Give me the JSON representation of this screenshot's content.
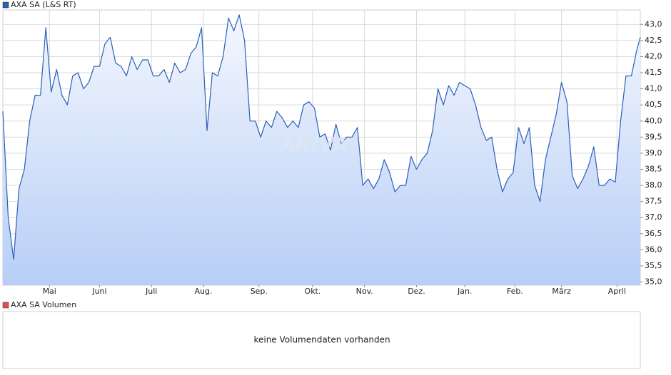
{
  "chart_data": {
    "type": "line",
    "title": "AXA SA (L&S RT)",
    "watermark": "ARIVA",
    "volume_title": "AXA SA Volumen",
    "volume_note": "keine Volumendaten vorhanden",
    "grid": true,
    "xlim": [
      0,
      356
    ],
    "ylim": [
      34.9,
      43.45
    ],
    "xticks": [
      {
        "value": 26,
        "label": "Mai"
      },
      {
        "value": 54,
        "label": "Juni"
      },
      {
        "value": 83,
        "label": "Juli"
      },
      {
        "value": 112,
        "label": "Aug."
      },
      {
        "value": 143,
        "label": "Sep."
      },
      {
        "value": 173,
        "label": "Okt."
      },
      {
        "value": 202,
        "label": "Nov."
      },
      {
        "value": 231,
        "label": "Dez."
      },
      {
        "value": 258,
        "label": "Jan."
      },
      {
        "value": 286,
        "label": "Feb."
      },
      {
        "value": 312,
        "label": "März"
      },
      {
        "value": 343,
        "label": "April"
      }
    ],
    "yticks": [
      {
        "value": 35,
        "label": "35,0"
      },
      {
        "value": 35.5,
        "label": "35,5"
      },
      {
        "value": 36,
        "label": "36,0"
      },
      {
        "value": 36.5,
        "label": "36,5"
      },
      {
        "value": 37,
        "label": "37,0"
      },
      {
        "value": 37.5,
        "label": "37,5"
      },
      {
        "value": 38,
        "label": "38,0"
      },
      {
        "value": 38.5,
        "label": "38,5"
      },
      {
        "value": 39,
        "label": "39,0"
      },
      {
        "value": 39.5,
        "label": "39,5"
      },
      {
        "value": 40,
        "label": "40,0"
      },
      {
        "value": 40.5,
        "label": "40,5"
      },
      {
        "value": 41,
        "label": "41,0"
      },
      {
        "value": 41.5,
        "label": "41,5"
      },
      {
        "value": 42,
        "label": "42,0"
      },
      {
        "value": 42.5,
        "label": "42,5"
      },
      {
        "value": 43,
        "label": "43,0"
      }
    ],
    "series": [
      {
        "name": "AXA SA (L&S RT)",
        "color": "#2a5fb8",
        "legend_color": "#2a5fb8",
        "x": [
          0,
          3,
          6,
          9,
          12,
          15,
          18,
          21,
          24,
          27,
          30,
          33,
          36,
          39,
          42,
          45,
          48,
          51,
          54,
          57,
          60,
          63,
          66,
          69,
          72,
          75,
          78,
          81,
          84,
          87,
          90,
          93,
          96,
          99,
          102,
          105,
          108,
          111,
          114,
          117,
          120,
          123,
          126,
          129,
          132,
          135,
          138,
          141,
          144,
          147,
          150,
          153,
          156,
          159,
          162,
          165,
          168,
          171,
          174,
          177,
          180,
          183,
          186,
          189,
          192,
          195,
          198,
          201,
          204,
          207,
          210,
          213,
          216,
          219,
          222,
          225,
          228,
          231,
          234,
          237,
          240,
          243,
          246,
          249,
          252,
          255,
          258,
          261,
          264,
          267,
          270,
          273,
          276,
          279,
          282,
          285,
          288,
          291,
          294,
          297,
          300,
          303,
          306,
          309,
          312,
          315,
          318,
          321,
          324,
          327,
          330,
          333,
          336,
          339,
          342,
          345,
          348,
          351,
          354,
          356
        ],
        "values": [
          40.3,
          37.0,
          35.7,
          37.9,
          38.5,
          40.0,
          40.8,
          40.8,
          42.9,
          40.9,
          41.6,
          40.8,
          40.5,
          41.4,
          41.5,
          41.0,
          41.2,
          41.7,
          41.7,
          42.4,
          42.6,
          41.8,
          41.7,
          41.4,
          42.0,
          41.6,
          41.9,
          41.9,
          41.4,
          41.4,
          41.6,
          41.2,
          41.8,
          41.5,
          41.6,
          42.1,
          42.3,
          42.9,
          39.7,
          41.5,
          41.4,
          42.0,
          43.2,
          42.8,
          43.3,
          42.5,
          40.0,
          40.0,
          39.5,
          40.0,
          39.8,
          40.3,
          40.1,
          39.8,
          40.0,
          39.8,
          40.5,
          40.6,
          40.4,
          39.5,
          39.6,
          39.1,
          39.9,
          39.3,
          39.5,
          39.5,
          39.8,
          38.0,
          38.2,
          37.9,
          38.2,
          38.8,
          38.4,
          37.8,
          38.0,
          38.0,
          38.9,
          38.5,
          38.8,
          39.0,
          39.7,
          41.0,
          40.5,
          41.1,
          40.8,
          41.2,
          41.1,
          41.0,
          40.5,
          39.8,
          39.4,
          39.5,
          38.5,
          37.8,
          38.2,
          38.4,
          39.8,
          39.3,
          39.8,
          38.0,
          37.5,
          38.8,
          39.5,
          40.2,
          41.2,
          40.6,
          38.3,
          37.9,
          38.2,
          38.6,
          39.2,
          38.0,
          38.0,
          38.2,
          38.1,
          40.0,
          41.4,
          41.4,
          42.2,
          42.6
        ]
      }
    ],
    "volume_legend_color": "#d9534f"
  }
}
